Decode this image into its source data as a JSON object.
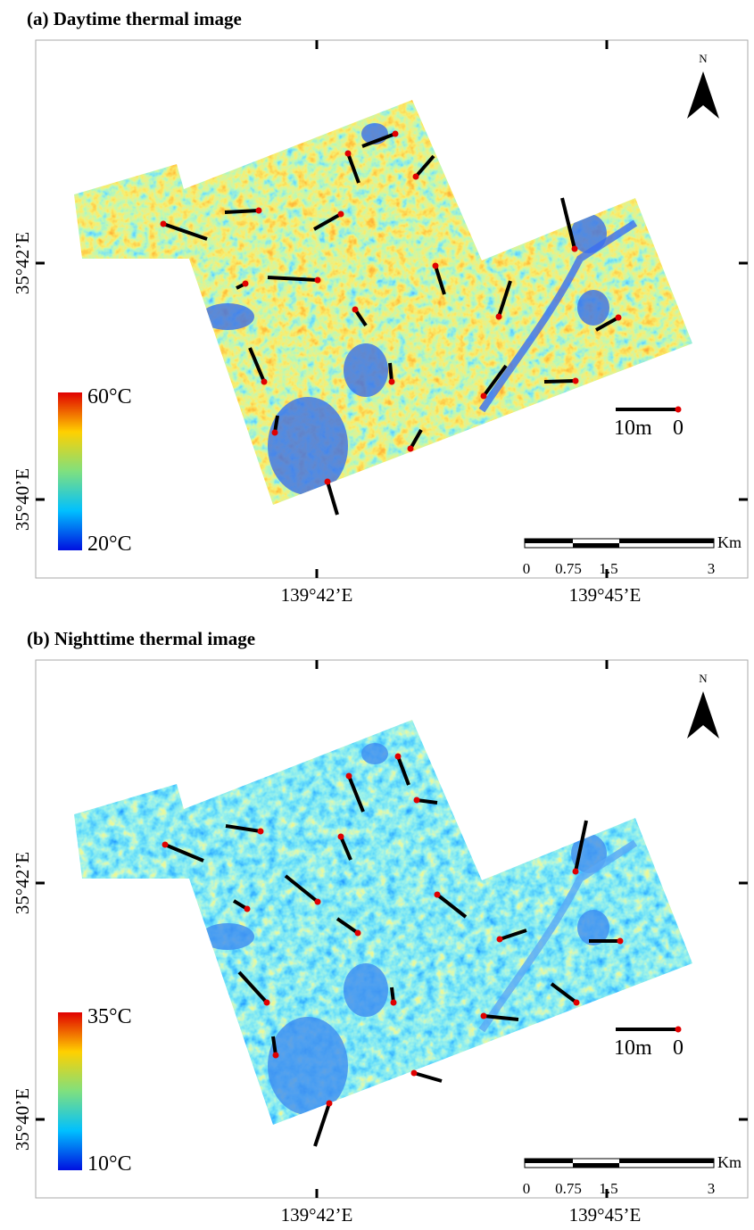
{
  "panels": [
    {
      "title": "(a) Daytime thermal image",
      "latitude_labels": [
        "35°42’E",
        "35°40’E"
      ],
      "longitude_labels": [
        "139°42’E",
        "139°45’E"
      ],
      "legend": {
        "max": "60°C",
        "min": "20°C"
      },
      "north": "N",
      "distance_scale": {
        "length": "10m",
        "zero": "0"
      },
      "km_scale": {
        "unit": "Km",
        "ticks": [
          "0",
          "0.75",
          "1.5",
          "3"
        ]
      }
    },
    {
      "title": "(b) Nighttime thermal image",
      "latitude_labels": [
        "35°42’E",
        "35°40’E"
      ],
      "longitude_labels": [
        "139°42’E",
        "139°45’E"
      ],
      "legend": {
        "max": "35°C",
        "min": "10°C"
      },
      "north": "N",
      "distance_scale": {
        "length": "10m",
        "zero": "0"
      },
      "km_scale": {
        "unit": "Km",
        "ticks": [
          "0",
          "0.75",
          "1.5",
          "3"
        ]
      }
    }
  ]
}
